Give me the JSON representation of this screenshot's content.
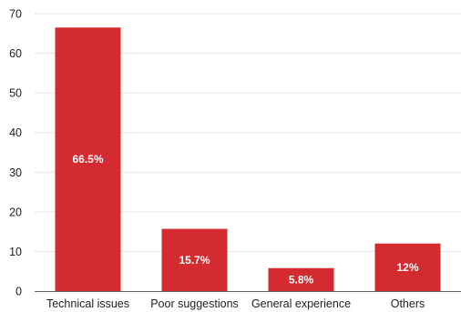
{
  "chart_data": {
    "type": "bar",
    "categories": [
      "Technical issues",
      "Poor suggestions",
      "General experience",
      "Others"
    ],
    "values": [
      66.5,
      15.7,
      5.8,
      12
    ],
    "data_labels": [
      "66.5%",
      "15.7%",
      "5.8%",
      "12%"
    ],
    "title": "",
    "xlabel": "",
    "ylabel": "",
    "ylim": [
      0,
      70
    ],
    "yticks": [
      0,
      10,
      20,
      30,
      40,
      50,
      60,
      70
    ],
    "grid": true,
    "legend": "none",
    "bar_color": "#d32b2f"
  }
}
